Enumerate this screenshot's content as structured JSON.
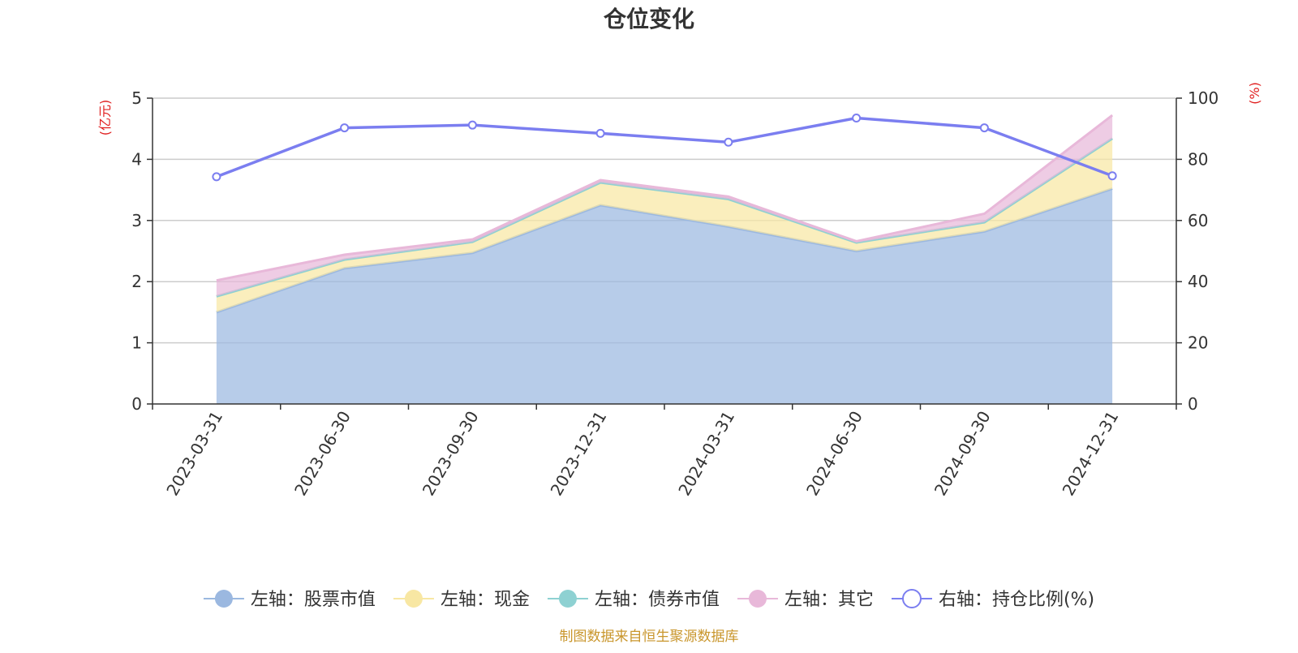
{
  "chart_data": {
    "type": "area",
    "title": "仓位变化",
    "left_axis": {
      "unit": "(亿元)",
      "min": 0,
      "max": 5,
      "ticks": [
        "0",
        "1",
        "2",
        "3",
        "4",
        "5"
      ]
    },
    "right_axis": {
      "unit": "(%)",
      "min": 0,
      "max": 100,
      "ticks": [
        "0",
        "20",
        "40",
        "60",
        "80",
        "100"
      ]
    },
    "categories": [
      "2023-03-31",
      "2023-06-30",
      "2023-09-30",
      "2023-12-31",
      "2024-03-31",
      "2024-06-30",
      "2024-09-30",
      "2024-12-31"
    ],
    "grid": true,
    "legend_position": "bottom",
    "stacked": true,
    "series": [
      {
        "name": "左轴：股票市值",
        "axis": "left",
        "color": "#9bb8e0",
        "values": [
          1.5,
          2.22,
          2.47,
          3.25,
          2.9,
          2.5,
          2.82,
          3.52
        ]
      },
      {
        "name": "左轴：现金",
        "axis": "left",
        "color": "#f8e7a3",
        "values": [
          0.26,
          0.14,
          0.18,
          0.37,
          0.45,
          0.14,
          0.15,
          0.82
        ]
      },
      {
        "name": "左轴：债券市值",
        "axis": "left",
        "color": "#8ed1d2",
        "values": [
          0,
          0,
          0,
          0,
          0,
          0,
          0,
          0
        ]
      },
      {
        "name": "左轴：其它",
        "axis": "left",
        "color": "#e8b8d9",
        "values": [
          0.26,
          0.08,
          0.04,
          0.04,
          0.04,
          0.02,
          0.14,
          0.38
        ]
      },
      {
        "name": "右轴：持仓比例(%)",
        "axis": "right",
        "color": "#7b7ef0",
        "values": [
          74.3,
          90.3,
          91.2,
          88.5,
          85.6,
          93.5,
          90.3,
          74.6
        ]
      }
    ],
    "footer": "制图数据来自恒生聚源数据库"
  },
  "colors": {
    "left_unit": "#e02020",
    "right_unit": "#e02020",
    "footer": "#c9962c",
    "grid": "#cccccc",
    "axis": "#333333"
  }
}
